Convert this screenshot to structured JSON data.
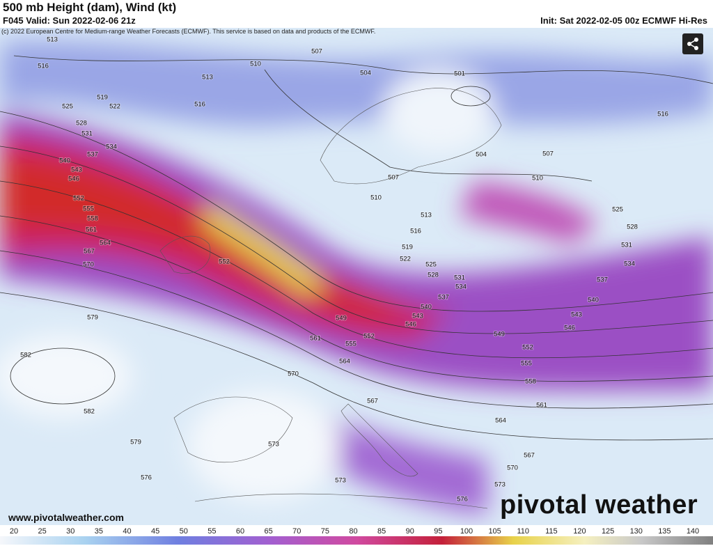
{
  "header": {
    "title": "500 mb Height (dam), Wind (kt)",
    "valid": "F045 Valid: Sun 2022-02-06 21z",
    "init": "Init: Sat 2022-02-05 00z ECMWF Hi-Res",
    "copyright": "(c) 2022 European Centre for Medium-range Weather Forecasts (ECMWF). This service is based on data and products of the ECMWF."
  },
  "map": {
    "contour_labels": [
      513,
      516,
      519,
      522,
      525,
      528,
      531,
      534,
      537,
      540,
      543,
      546,
      552,
      555,
      558,
      561,
      564,
      567,
      570,
      579,
      582,
      582,
      579,
      576,
      513,
      516,
      510,
      507,
      504,
      501,
      504,
      507,
      510,
      507,
      510,
      513,
      516,
      519,
      522,
      525,
      528,
      531,
      534,
      537,
      540,
      543,
      546,
      549,
      552,
      555,
      558,
      561,
      564,
      567,
      570,
      573,
      576,
      573,
      573,
      567,
      570,
      564,
      561,
      555,
      552,
      549,
      552,
      516,
      525,
      528,
      531,
      534,
      537,
      540,
      543,
      546
    ]
  },
  "colorbar": {
    "labels": [
      20,
      25,
      30,
      35,
      40,
      45,
      50,
      55,
      60,
      65,
      70,
      75,
      80,
      85,
      90,
      95,
      100,
      105,
      110,
      115,
      120,
      125,
      130,
      135,
      140
    ]
  },
  "footer": {
    "website": "www.pivotalweather.com",
    "logo": "pivotal weather"
  }
}
